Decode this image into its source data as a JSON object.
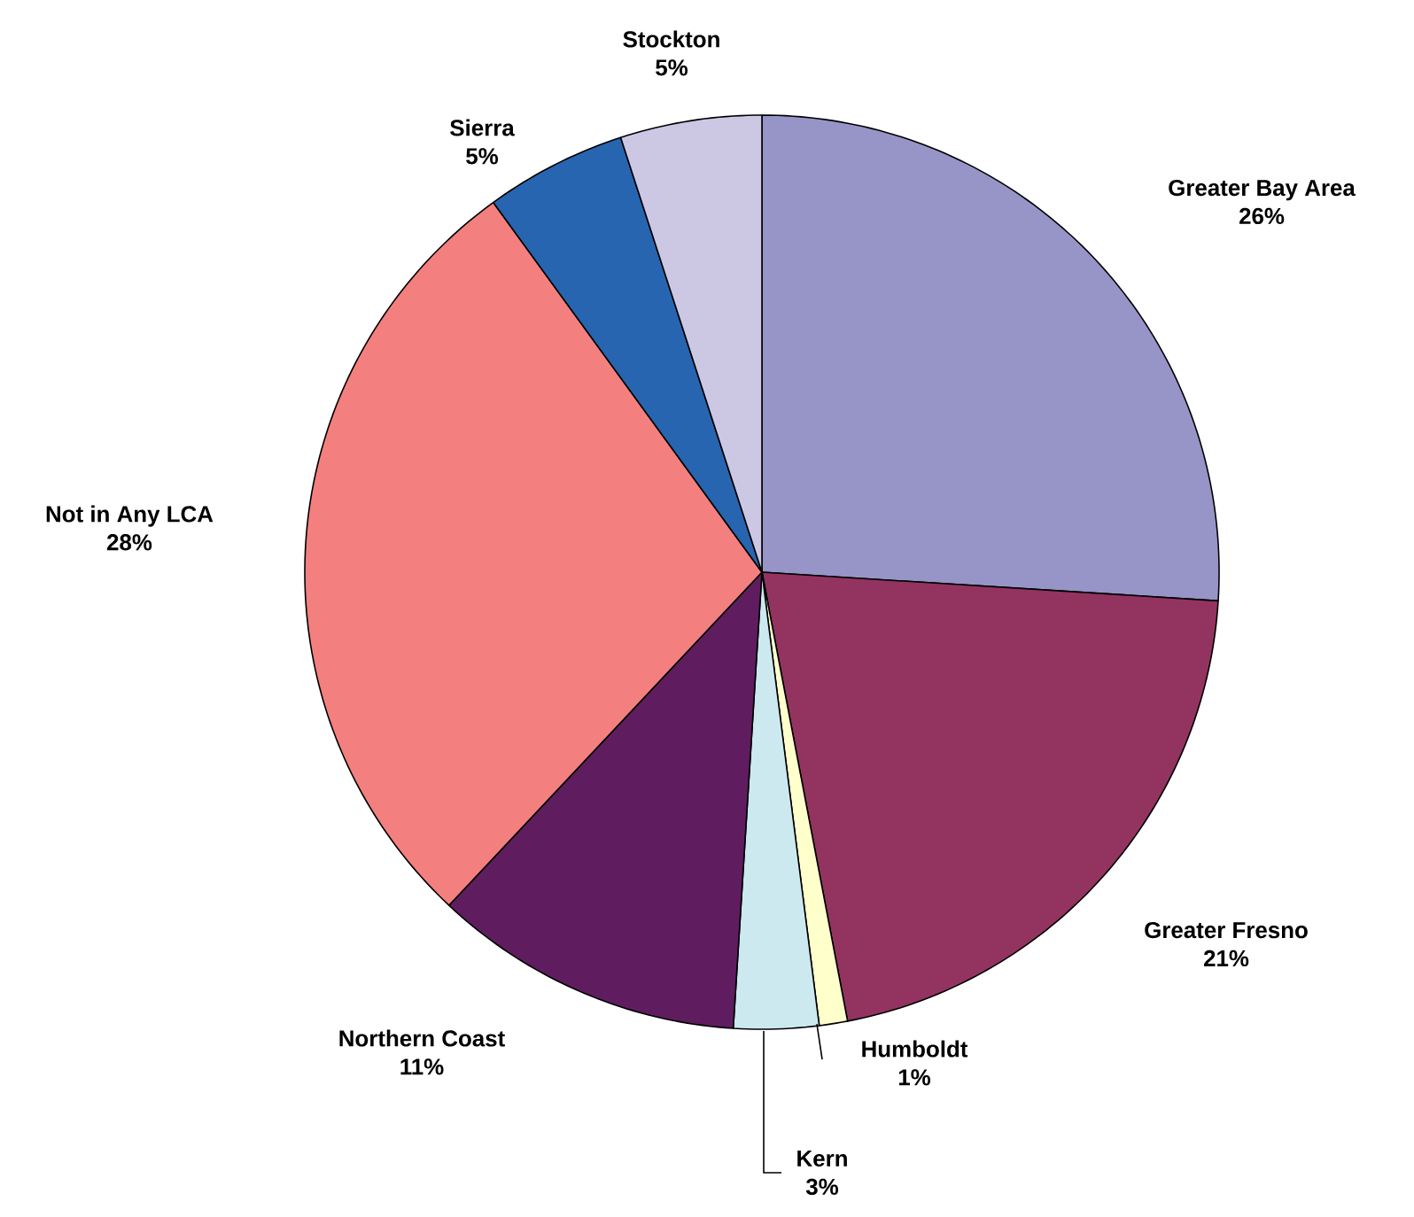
{
  "chart_data": {
    "type": "pie",
    "categories": [
      "Greater Bay Area",
      "Greater Fresno",
      "Humboldt",
      "Kern",
      "Northern Coast",
      "Not in Any LCA",
      "Sierra",
      "Stockton"
    ],
    "values": [
      26,
      21,
      1,
      3,
      11,
      28,
      5,
      5
    ],
    "value_labels": [
      "26%",
      "21%",
      "1%",
      "3%",
      "11%",
      "28%",
      "5%",
      "5%"
    ],
    "colors": [
      "#9794c8",
      "#933360",
      "#ffffcc",
      "#cce9f0",
      "#5f1d5f",
      "#f47f7f",
      "#2765b0",
      "#ccc8e4"
    ]
  }
}
